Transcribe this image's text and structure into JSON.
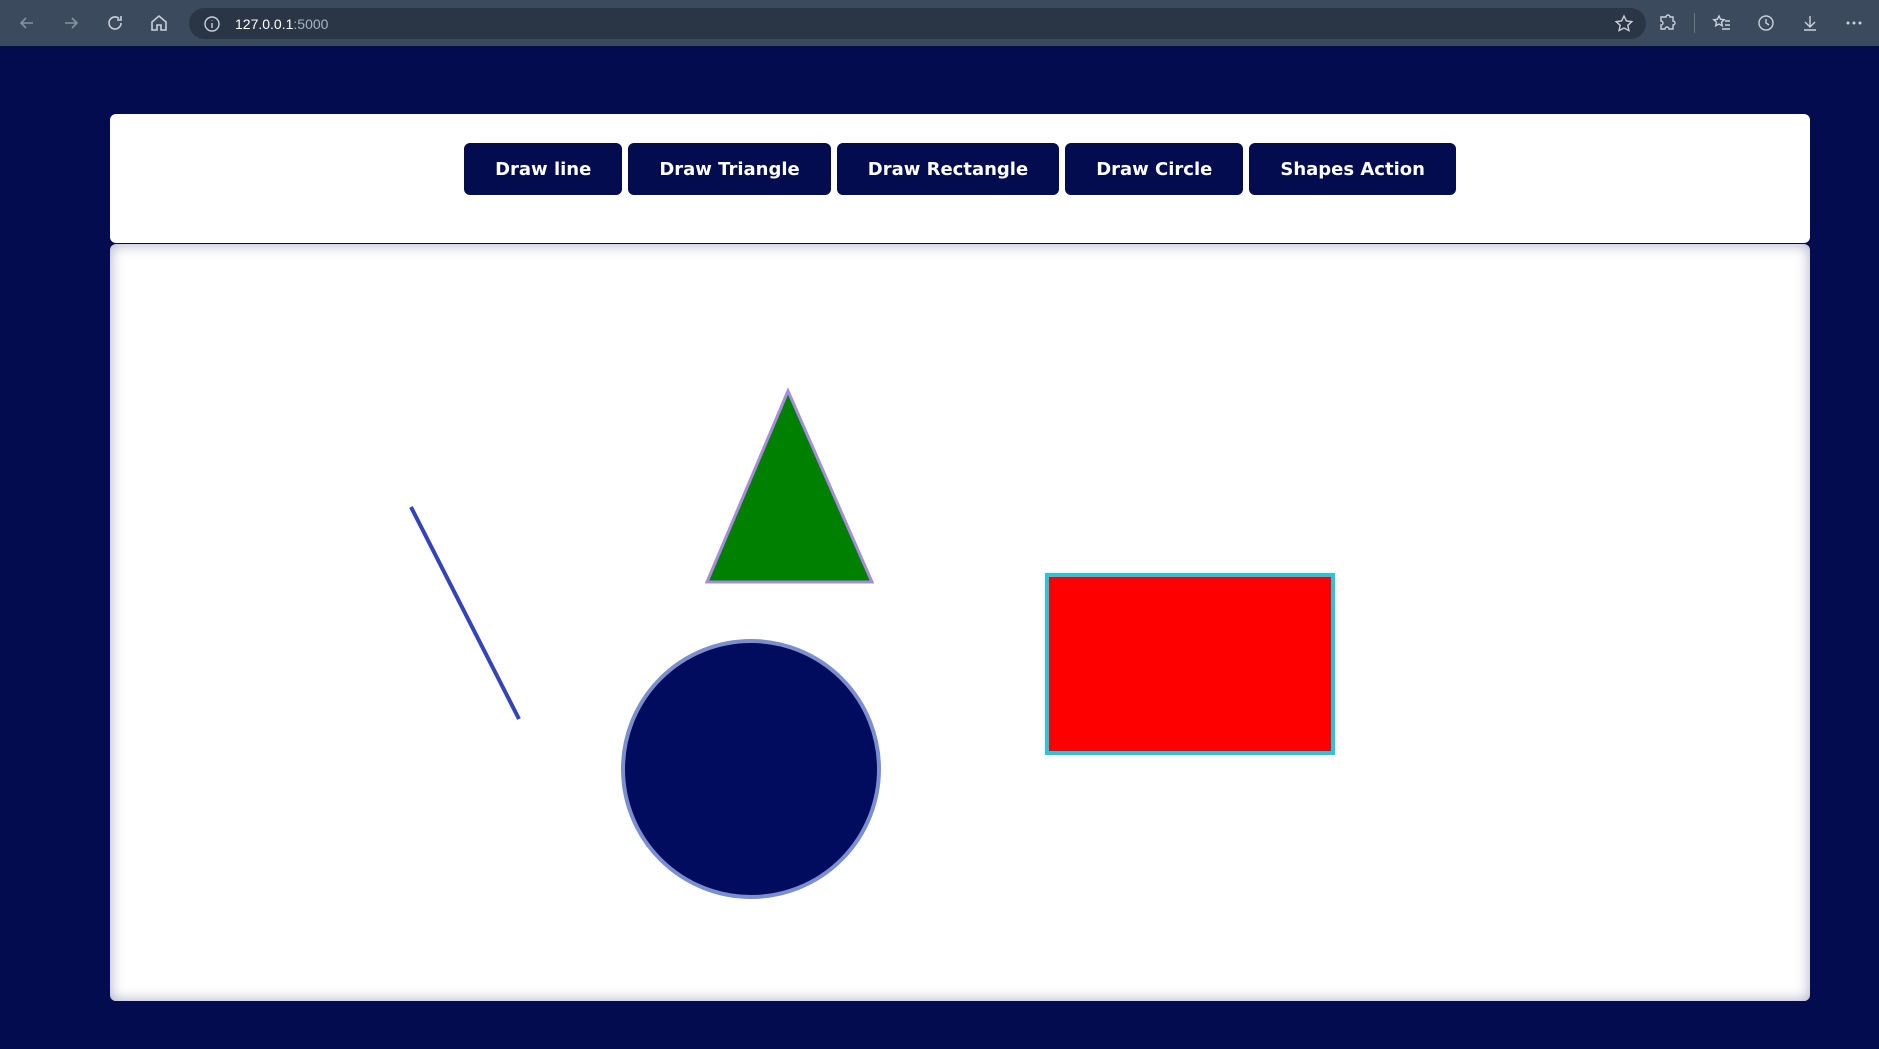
{
  "browser": {
    "url_host": "127.0.0.1",
    "url_port": ":5000"
  },
  "toolbar": {
    "buttons": [
      {
        "label": "Draw line"
      },
      {
        "label": "Draw Triangle"
      },
      {
        "label": "Draw Rectangle"
      },
      {
        "label": "Draw Circle"
      },
      {
        "label": "Shapes Action"
      }
    ]
  },
  "canvas": {
    "shapes": [
      {
        "kind": "line",
        "stroke": "#3344bb"
      },
      {
        "kind": "triangle",
        "fill": "#008000",
        "stroke": "#a78bdc"
      },
      {
        "kind": "rectangle",
        "fill": "#ff0000",
        "stroke": "#22c8e0"
      },
      {
        "kind": "circle",
        "fill": "#020c5e",
        "stroke": "#7b8fd0"
      }
    ]
  },
  "colors": {
    "page_background": "#020c4f",
    "button_background": "#020c4f",
    "button_text": "#ffffff"
  }
}
